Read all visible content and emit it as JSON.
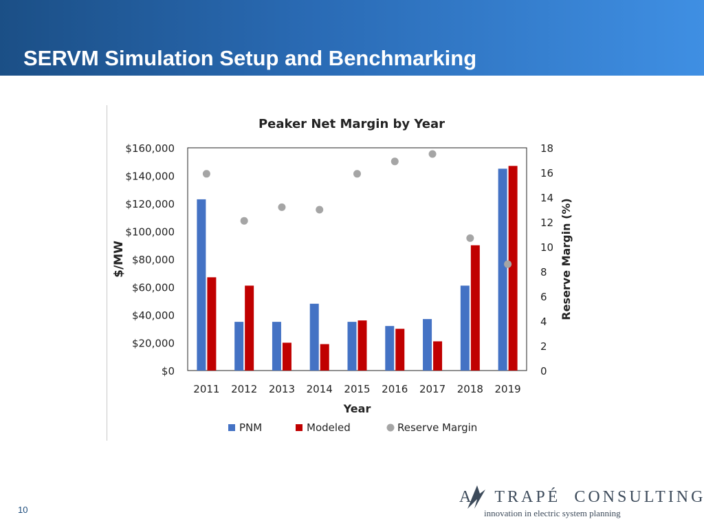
{
  "header": {
    "title": "SERVM Simulation Setup and Benchmarking"
  },
  "page_number": "10",
  "logo": {
    "name": "A TRAPÉ CONSULTING",
    "tagline": "innovation in electric system planning"
  },
  "colors": {
    "pnm": "#4472c4",
    "modeled": "#c00000",
    "reserve": "#a5a5a5"
  },
  "chart_data": {
    "type": "bar",
    "title": "Peaker Net Margin by Year",
    "xlabel": "Year",
    "ylabel": "$/MW",
    "y2label": "Reserve Margin (%)",
    "categories": [
      "2011",
      "2012",
      "2013",
      "2014",
      "2015",
      "2016",
      "2017",
      "2018",
      "2019"
    ],
    "ylim": [
      0,
      160000
    ],
    "y2lim": [
      0,
      18
    ],
    "y_ticks": [
      "$0",
      "$20,000",
      "$40,000",
      "$60,000",
      "$80,000",
      "$100,000",
      "$120,000",
      "$140,000",
      "$160,000"
    ],
    "y2_ticks": [
      "0",
      "2",
      "4",
      "6",
      "8",
      "10",
      "12",
      "14",
      "16",
      "18"
    ],
    "series": [
      {
        "name": "PNM",
        "values": [
          123000,
          35000,
          35000,
          48000,
          35000,
          32000,
          37000,
          61000,
          145000
        ]
      },
      {
        "name": "Modeled",
        "values": [
          67000,
          61000,
          20000,
          19000,
          36000,
          30000,
          21000,
          90000,
          147000
        ]
      },
      {
        "name": "Reserve Margin",
        "axis": "secondary",
        "type": "scatter",
        "values": [
          15.9,
          12.1,
          13.2,
          13.0,
          15.9,
          16.9,
          17.5,
          10.7,
          8.6
        ]
      }
    ],
    "legend": "bottom",
    "grid": false
  }
}
